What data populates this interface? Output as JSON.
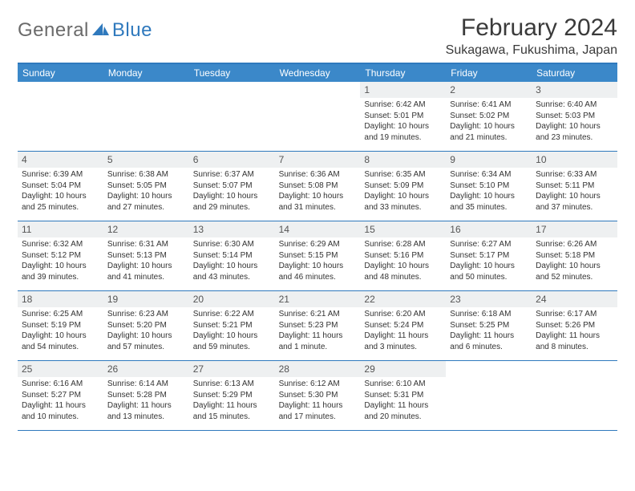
{
  "logo": {
    "general": "General",
    "blue": "Blue"
  },
  "title": "February 2024",
  "location": "Sukagawa, Fukushima, Japan",
  "colors": {
    "header_bar": "#3b88c9",
    "header_border": "#2f79bd",
    "daynum_bg": "#eef0f1",
    "text": "#333333",
    "logo_gray": "#6a6a6a",
    "logo_blue": "#2f79bd"
  },
  "typography": {
    "title_fontsize": 30,
    "location_fontsize": 16,
    "weekday_fontsize": 12,
    "daynum_fontsize": 12,
    "body_fontsize": 10
  },
  "weekdays": [
    "Sunday",
    "Monday",
    "Tuesday",
    "Wednesday",
    "Thursday",
    "Friday",
    "Saturday"
  ],
  "weeks": [
    [
      null,
      null,
      null,
      null,
      {
        "n": "1",
        "sr": "Sunrise: 6:42 AM",
        "ss": "Sunset: 5:01 PM",
        "dl": "Daylight: 10 hours and 19 minutes."
      },
      {
        "n": "2",
        "sr": "Sunrise: 6:41 AM",
        "ss": "Sunset: 5:02 PM",
        "dl": "Daylight: 10 hours and 21 minutes."
      },
      {
        "n": "3",
        "sr": "Sunrise: 6:40 AM",
        "ss": "Sunset: 5:03 PM",
        "dl": "Daylight: 10 hours and 23 minutes."
      }
    ],
    [
      {
        "n": "4",
        "sr": "Sunrise: 6:39 AM",
        "ss": "Sunset: 5:04 PM",
        "dl": "Daylight: 10 hours and 25 minutes."
      },
      {
        "n": "5",
        "sr": "Sunrise: 6:38 AM",
        "ss": "Sunset: 5:05 PM",
        "dl": "Daylight: 10 hours and 27 minutes."
      },
      {
        "n": "6",
        "sr": "Sunrise: 6:37 AM",
        "ss": "Sunset: 5:07 PM",
        "dl": "Daylight: 10 hours and 29 minutes."
      },
      {
        "n": "7",
        "sr": "Sunrise: 6:36 AM",
        "ss": "Sunset: 5:08 PM",
        "dl": "Daylight: 10 hours and 31 minutes."
      },
      {
        "n": "8",
        "sr": "Sunrise: 6:35 AM",
        "ss": "Sunset: 5:09 PM",
        "dl": "Daylight: 10 hours and 33 minutes."
      },
      {
        "n": "9",
        "sr": "Sunrise: 6:34 AM",
        "ss": "Sunset: 5:10 PM",
        "dl": "Daylight: 10 hours and 35 minutes."
      },
      {
        "n": "10",
        "sr": "Sunrise: 6:33 AM",
        "ss": "Sunset: 5:11 PM",
        "dl": "Daylight: 10 hours and 37 minutes."
      }
    ],
    [
      {
        "n": "11",
        "sr": "Sunrise: 6:32 AM",
        "ss": "Sunset: 5:12 PM",
        "dl": "Daylight: 10 hours and 39 minutes."
      },
      {
        "n": "12",
        "sr": "Sunrise: 6:31 AM",
        "ss": "Sunset: 5:13 PM",
        "dl": "Daylight: 10 hours and 41 minutes."
      },
      {
        "n": "13",
        "sr": "Sunrise: 6:30 AM",
        "ss": "Sunset: 5:14 PM",
        "dl": "Daylight: 10 hours and 43 minutes."
      },
      {
        "n": "14",
        "sr": "Sunrise: 6:29 AM",
        "ss": "Sunset: 5:15 PM",
        "dl": "Daylight: 10 hours and 46 minutes."
      },
      {
        "n": "15",
        "sr": "Sunrise: 6:28 AM",
        "ss": "Sunset: 5:16 PM",
        "dl": "Daylight: 10 hours and 48 minutes."
      },
      {
        "n": "16",
        "sr": "Sunrise: 6:27 AM",
        "ss": "Sunset: 5:17 PM",
        "dl": "Daylight: 10 hours and 50 minutes."
      },
      {
        "n": "17",
        "sr": "Sunrise: 6:26 AM",
        "ss": "Sunset: 5:18 PM",
        "dl": "Daylight: 10 hours and 52 minutes."
      }
    ],
    [
      {
        "n": "18",
        "sr": "Sunrise: 6:25 AM",
        "ss": "Sunset: 5:19 PM",
        "dl": "Daylight: 10 hours and 54 minutes."
      },
      {
        "n": "19",
        "sr": "Sunrise: 6:23 AM",
        "ss": "Sunset: 5:20 PM",
        "dl": "Daylight: 10 hours and 57 minutes."
      },
      {
        "n": "20",
        "sr": "Sunrise: 6:22 AM",
        "ss": "Sunset: 5:21 PM",
        "dl": "Daylight: 10 hours and 59 minutes."
      },
      {
        "n": "21",
        "sr": "Sunrise: 6:21 AM",
        "ss": "Sunset: 5:23 PM",
        "dl": "Daylight: 11 hours and 1 minute."
      },
      {
        "n": "22",
        "sr": "Sunrise: 6:20 AM",
        "ss": "Sunset: 5:24 PM",
        "dl": "Daylight: 11 hours and 3 minutes."
      },
      {
        "n": "23",
        "sr": "Sunrise: 6:18 AM",
        "ss": "Sunset: 5:25 PM",
        "dl": "Daylight: 11 hours and 6 minutes."
      },
      {
        "n": "24",
        "sr": "Sunrise: 6:17 AM",
        "ss": "Sunset: 5:26 PM",
        "dl": "Daylight: 11 hours and 8 minutes."
      }
    ],
    [
      {
        "n": "25",
        "sr": "Sunrise: 6:16 AM",
        "ss": "Sunset: 5:27 PM",
        "dl": "Daylight: 11 hours and 10 minutes."
      },
      {
        "n": "26",
        "sr": "Sunrise: 6:14 AM",
        "ss": "Sunset: 5:28 PM",
        "dl": "Daylight: 11 hours and 13 minutes."
      },
      {
        "n": "27",
        "sr": "Sunrise: 6:13 AM",
        "ss": "Sunset: 5:29 PM",
        "dl": "Daylight: 11 hours and 15 minutes."
      },
      {
        "n": "28",
        "sr": "Sunrise: 6:12 AM",
        "ss": "Sunset: 5:30 PM",
        "dl": "Daylight: 11 hours and 17 minutes."
      },
      {
        "n": "29",
        "sr": "Sunrise: 6:10 AM",
        "ss": "Sunset: 5:31 PM",
        "dl": "Daylight: 11 hours and 20 minutes."
      },
      null,
      null
    ]
  ]
}
